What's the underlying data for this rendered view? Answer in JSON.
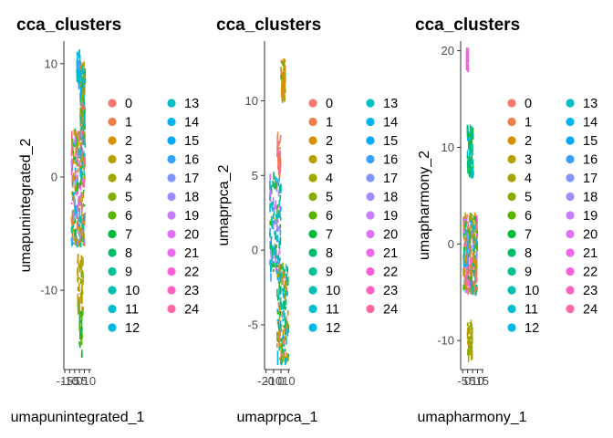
{
  "chart_data": [
    {
      "type": "scatter",
      "title": "cca_clusters",
      "xlabel": "umapunintegrated_1",
      "ylabel": "umapunintegrated_2",
      "xticks": [
        "-15",
        "-10",
        "-5",
        "0",
        "5",
        "10"
      ],
      "yticks": [
        "-10",
        "0",
        "10"
      ],
      "xlim": [
        -16,
        12
      ],
      "ylim": [
        -17,
        12
      ],
      "x_points_range": [
        -12,
        9
      ],
      "legend_title": "",
      "legend_position": "right",
      "clusters": [
        "0",
        "1",
        "2",
        "3",
        "4",
        "5",
        "6",
        "7",
        "8",
        "9",
        "10",
        "11",
        "12",
        "13",
        "14",
        "15",
        "16",
        "17",
        "18",
        "19",
        "20",
        "21",
        "22",
        "23",
        "24"
      ],
      "groups": [
        {
          "x": [
            1,
            6
          ],
          "y": [
            3,
            10
          ],
          "clusters": [
            "0",
            "1",
            "2",
            "3",
            "4",
            "5",
            "6",
            "7",
            "8",
            "9",
            "10",
            "11",
            "12"
          ]
        },
        {
          "x": [
            -8,
            6
          ],
          "y": [
            -6,
            4
          ],
          "clusters": [
            "0",
            "1",
            "2",
            "3",
            "4",
            "5",
            "6",
            "7",
            "8",
            "9",
            "10",
            "11",
            "12",
            "13",
            "14",
            "15",
            "16",
            "17",
            "18",
            "19",
            "20",
            "21",
            "22",
            "23",
            "24"
          ]
        },
        {
          "x": [
            -2,
            4
          ],
          "y": [
            -12,
            -7
          ],
          "clusters": [
            "2",
            "3",
            "4",
            "5"
          ]
        },
        {
          "x": [
            0,
            3
          ],
          "y": [
            -16,
            -12
          ],
          "clusters": [
            "5",
            "6",
            "7"
          ]
        },
        {
          "x": [
            -3,
            1
          ],
          "y": [
            8,
            11
          ],
          "clusters": [
            "10",
            "11",
            "13"
          ]
        }
      ]
    },
    {
      "type": "scatter",
      "title": "cca_clusters",
      "xlabel": "umaprpca_1",
      "ylabel": "umaprpca_2",
      "xticks": [
        "-20",
        "-10",
        "0",
        "10"
      ],
      "yticks": [
        "-5",
        "0",
        "5",
        "10"
      ],
      "xlim": [
        -22,
        12
      ],
      "ylim": [
        -8,
        14
      ],
      "x_points_range": [
        -18,
        10
      ],
      "legend_title": "",
      "legend_position": "right",
      "clusters": [
        "0",
        "1",
        "2",
        "3",
        "4",
        "5",
        "6",
        "7",
        "8",
        "9",
        "10",
        "11",
        "12",
        "13",
        "14",
        "15",
        "16",
        "17",
        "18",
        "19",
        "20",
        "21",
        "22",
        "23",
        "24"
      ],
      "groups": [
        {
          "x": [
            0,
            6
          ],
          "y": [
            10,
            12.7
          ],
          "clusters": [
            "1",
            "2",
            "3",
            "4",
            "5"
          ]
        },
        {
          "x": [
            -15,
            0
          ],
          "y": [
            -2,
            5
          ],
          "clusters": [
            "6",
            "7",
            "8",
            "9",
            "10",
            "11",
            "12",
            "13",
            "14",
            "15",
            "16"
          ]
        },
        {
          "x": [
            -5,
            10
          ],
          "y": [
            -7.5,
            -1
          ],
          "clusters": [
            "0",
            "1",
            "2",
            "3",
            "4",
            "5",
            "6",
            "7",
            "8",
            "9",
            "10",
            "11",
            "12"
          ]
        },
        {
          "x": [
            -5,
            0
          ],
          "y": [
            5,
            8
          ],
          "clusters": [
            "19",
            "20",
            "21"
          ]
        }
      ]
    },
    {
      "type": "scatter",
      "title": "cca_clusters",
      "xlabel": "umapharmony_1",
      "ylabel": "umapharmony_2",
      "xticks": [
        "-5",
        "0",
        "5",
        "10",
        "15"
      ],
      "yticks": [
        "-10",
        "0",
        "10",
        "20"
      ],
      "xlim": [
        -7,
        16
      ],
      "ylim": [
        -13,
        21
      ],
      "x_points_range": [
        -5,
        12
      ],
      "legend_title": "",
      "legend_position": "right",
      "clusters": [
        "0",
        "1",
        "2",
        "3",
        "4",
        "5",
        "6",
        "7",
        "8",
        "9",
        "10",
        "11",
        "12",
        "13",
        "14",
        "15",
        "16",
        "17",
        "18",
        "19",
        "20",
        "21",
        "22",
        "23",
        "24"
      ],
      "groups": [
        {
          "x": [
            0,
            6
          ],
          "y": [
            7,
            12
          ],
          "clusters": [
            "6",
            "7",
            "8",
            "9",
            "10",
            "11"
          ]
        },
        {
          "x": [
            -4,
            10
          ],
          "y": [
            -5,
            3
          ],
          "clusters": [
            "0",
            "1",
            "2",
            "3",
            "4",
            "5",
            "6",
            "7",
            "8",
            "9",
            "10",
            "11",
            "12",
            "13",
            "14",
            "15",
            "16",
            "17",
            "18",
            "19",
            "20",
            "21",
            "22",
            "23",
            "24"
          ]
        },
        {
          "x": [
            0,
            5
          ],
          "y": [
            -12,
            -8
          ],
          "clusters": [
            "2",
            "3",
            "4",
            "5"
          ]
        },
        {
          "x": [
            -1,
            1
          ],
          "y": [
            18,
            20
          ],
          "clusters": [
            "17"
          ]
        }
      ]
    }
  ],
  "palette": {
    "0": "#F8766D",
    "1": "#EA8331",
    "2": "#D89000",
    "3": "#C09B00",
    "4": "#A3A500",
    "5": "#7CAE00",
    "6": "#39B600",
    "7": "#00BB4E",
    "8": "#00BF7D",
    "9": "#00C1A3",
    "10": "#00BFC4",
    "11": "#00BAE0",
    "12": "#00B0F6",
    "13": "#35A2FF",
    "14": "#9590FF",
    "15": "#C77CFF",
    "16": "#E76BF3",
    "17": "#FA62DB",
    "18": "#FF62BC",
    "19": "#FF6C91",
    "20": "#F8766D",
    "21": "#EA8331",
    "22": "#D89000",
    "23": "#C09B00",
    "24": "#A3A500"
  },
  "legend_colors_displayed": [
    "#F8766D",
    "#EF7F49",
    "#D89000",
    "#B79F00",
    "#A3A500",
    "#85AD00",
    "#5BB300",
    "#00BA38",
    "#00BE67",
    "#00C094",
    "#00BFB2",
    "#00BDD0",
    "#00B8E7",
    "#00BFC4",
    "#00B4F0",
    "#00A9FF",
    "#35A2FF",
    "#7F96FF",
    "#A58AFF",
    "#C77CFF",
    "#DF70F8",
    "#F066EA",
    "#FB61D7",
    "#FF61C3",
    "#FF67A4"
  ]
}
